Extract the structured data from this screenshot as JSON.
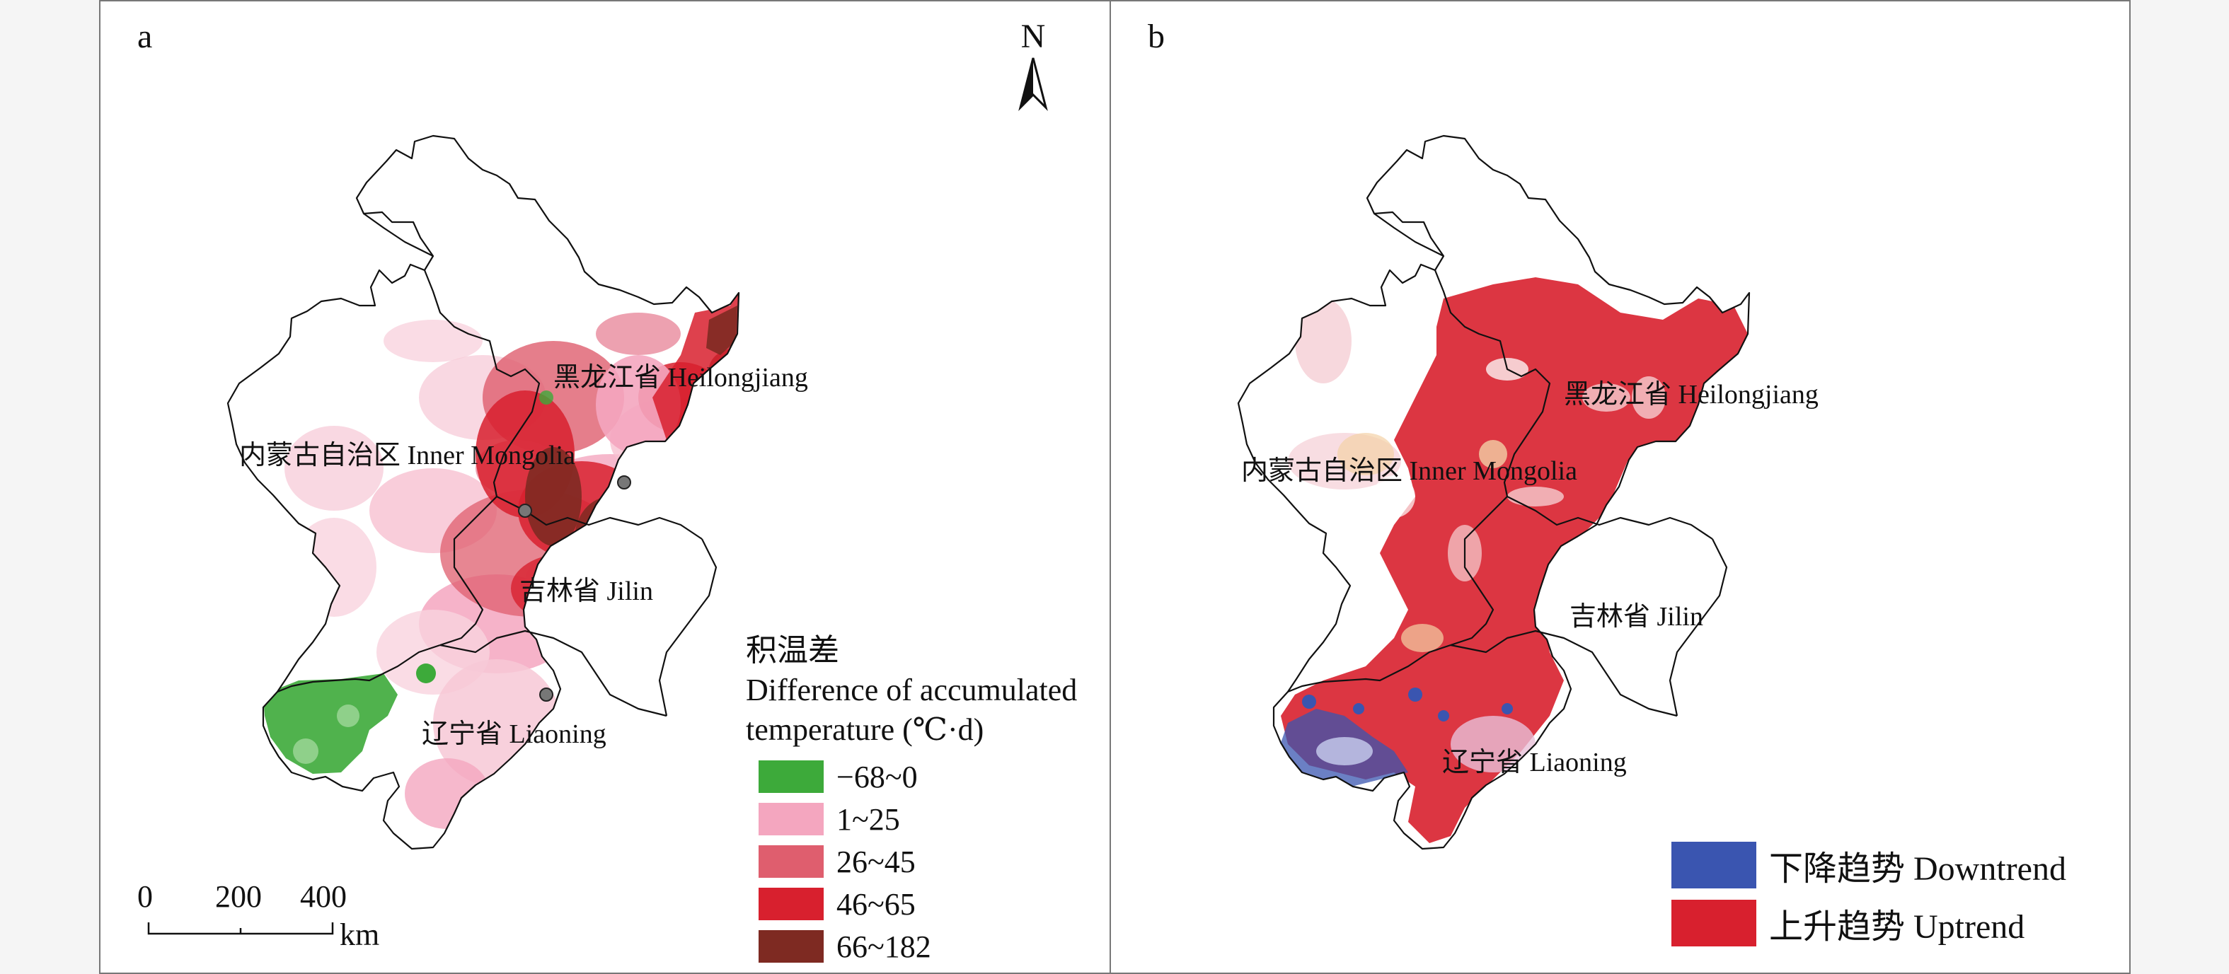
{
  "panel_a": {
    "letter": "a",
    "north_label": "N",
    "regions": {
      "heilongjiang": "黑龙江省 Heilongjiang",
      "inner_mongolia": "内蒙古自治区 Inner Mongolia",
      "jilin": "吉林省 Jilin",
      "liaoning": "辽宁省 Liaoning"
    },
    "legend": {
      "title_cn": "积温差",
      "title_en_1": "Difference of accumulated",
      "title_en_2": "temperature (℃·d)",
      "items": [
        {
          "label": "−68~0",
          "color": "#3daa3a"
        },
        {
          "label": "1~25",
          "color": "#f4a6bf"
        },
        {
          "label": "26~45",
          "color": "#df5e6e"
        },
        {
          "label": "46~65",
          "color": "#d8202e"
        },
        {
          "label": "66~182",
          "color": "#7e2a22"
        }
      ]
    },
    "scale_bar": {
      "ticks": [
        "0",
        "200",
        "400"
      ],
      "unit": "km"
    }
  },
  "panel_b": {
    "letter": "b",
    "regions": {
      "heilongjiang": "黑龙江省 Heilongjiang",
      "inner_mongolia": "内蒙古自治区 Inner Mongolia",
      "jilin": "吉林省 Jilin",
      "liaoning": "辽宁省 Liaoning"
    },
    "legend": {
      "items": [
        {
          "label": "下降趋势 Downtrend",
          "color": "#3a55b0"
        },
        {
          "label": "上升趋势 Uptrend",
          "color": "#d8202e"
        }
      ]
    }
  }
}
